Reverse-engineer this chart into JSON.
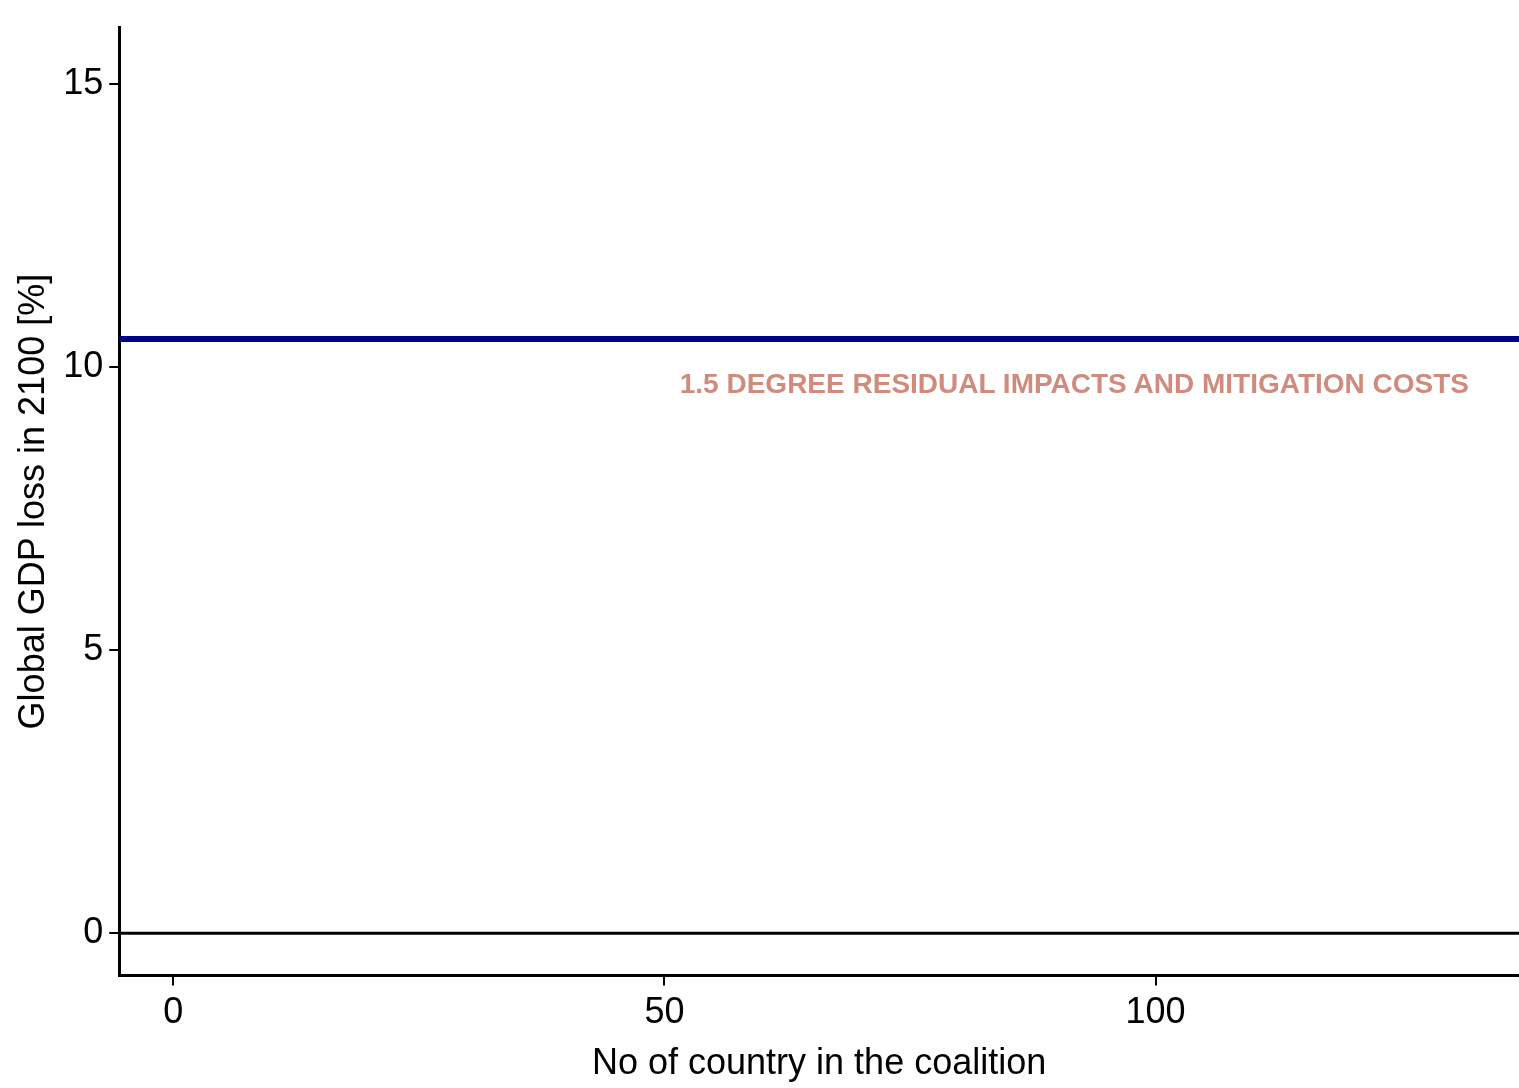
{
  "chart_data": {
    "type": "line",
    "xlabel": "No of country in the coalition",
    "ylabel": "Global GDP loss in 2100 [%]",
    "xlim": [
      -5.5,
      137
    ],
    "xticks": [
      0,
      50,
      100
    ],
    "ylim": [
      -0.75,
      16
    ],
    "yticks": [
      0,
      5,
      10,
      15
    ],
    "grid": false,
    "ref_lines": [
      {
        "axis": "y",
        "value": 10.5,
        "color": "#00008b",
        "label": "1.5 DEGREE RESIDUAL IMPACTS AND MITIGATION COSTS"
      },
      {
        "axis": "y",
        "value": 0,
        "color": "#000000"
      }
    ]
  }
}
